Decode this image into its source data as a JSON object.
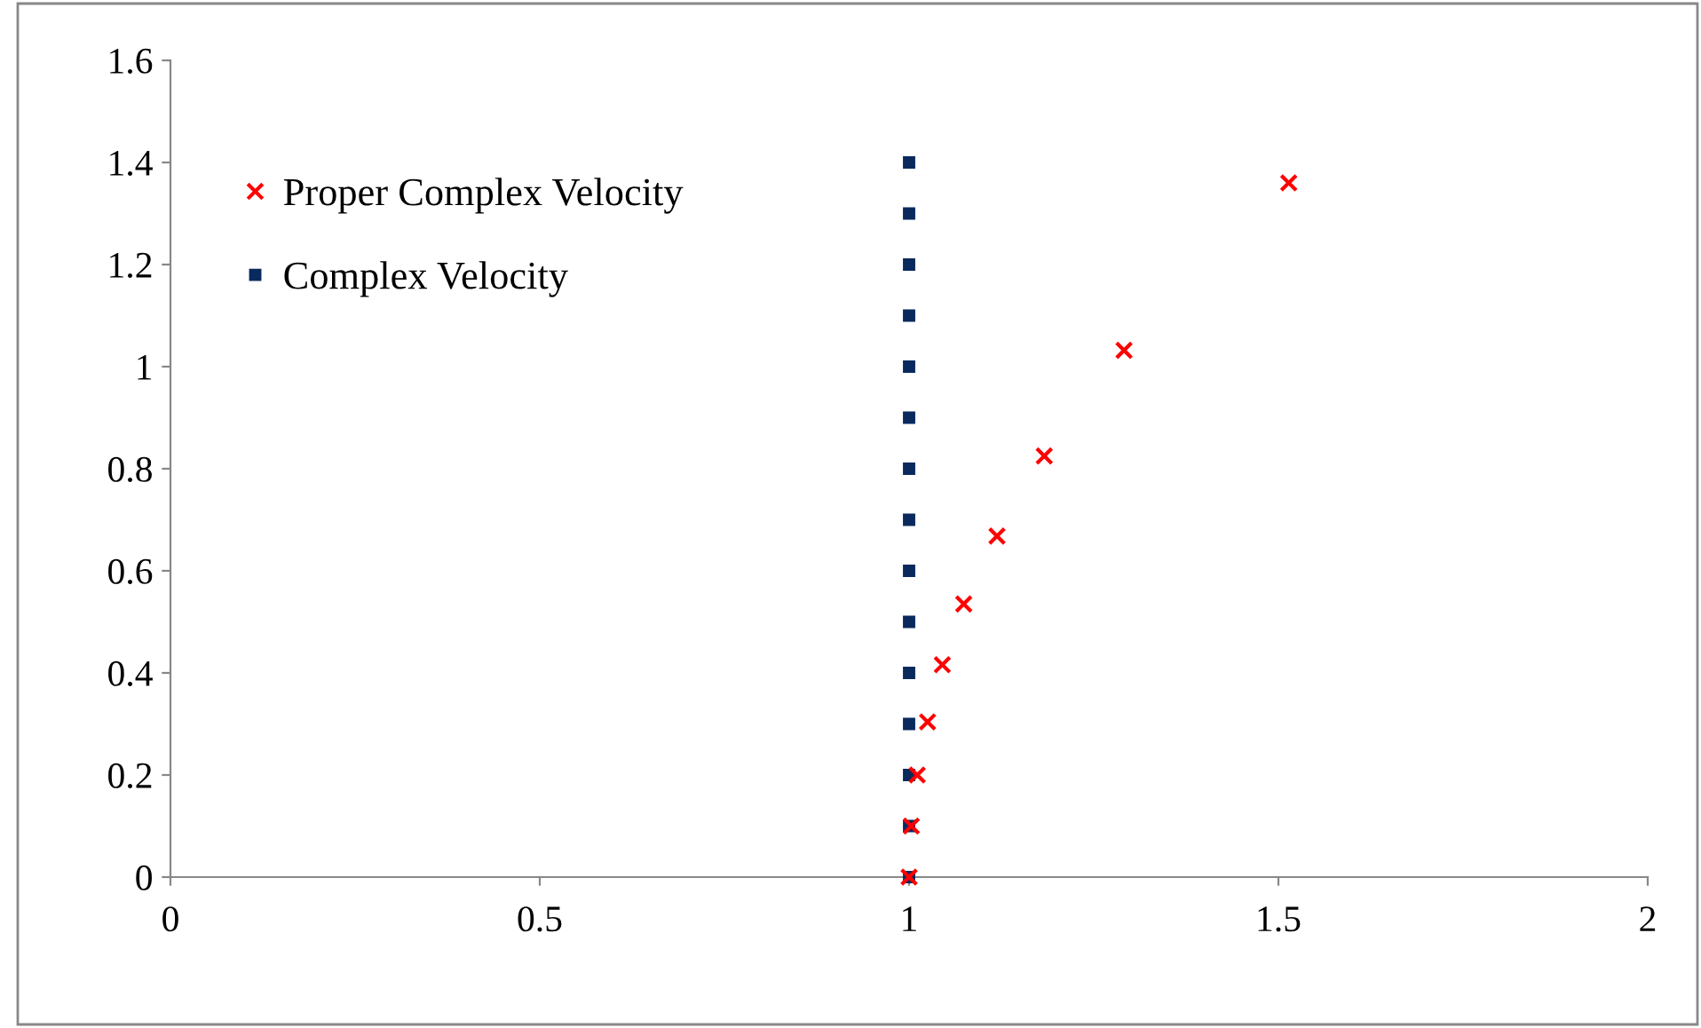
{
  "chart_data": {
    "type": "scatter",
    "xlim": [
      0,
      2
    ],
    "ylim": [
      0,
      1.6
    ],
    "xticks": [
      0,
      0.5,
      1,
      1.5,
      2
    ],
    "yticks": [
      0,
      0.2,
      0.4,
      0.6,
      0.8,
      1,
      1.2,
      1.4,
      1.6
    ],
    "grid": false,
    "legend": "top left",
    "series": [
      {
        "name": "Proper Complex Velocity",
        "color": "#ff0000",
        "marker": "cross",
        "x": [
          1.0,
          1.003,
          1.011,
          1.025,
          1.045,
          1.074,
          1.119,
          1.183,
          1.291,
          1.514
        ],
        "values": [
          0,
          0.1,
          0.2,
          0.304,
          0.416,
          0.535,
          0.668,
          0.825,
          1.032,
          1.36
        ]
      },
      {
        "name": "Complex Velocity",
        "color": "#0a2a5e",
        "marker": "square",
        "x": [
          1,
          1,
          1,
          1,
          1,
          1,
          1,
          1,
          1,
          1,
          1,
          1,
          1,
          1,
          1
        ],
        "values": [
          0,
          0.1,
          0.2,
          0.3,
          0.4,
          0.5,
          0.6,
          0.7,
          0.8,
          0.9,
          1.0,
          1.1,
          1.2,
          1.3,
          1.4
        ]
      }
    ]
  }
}
